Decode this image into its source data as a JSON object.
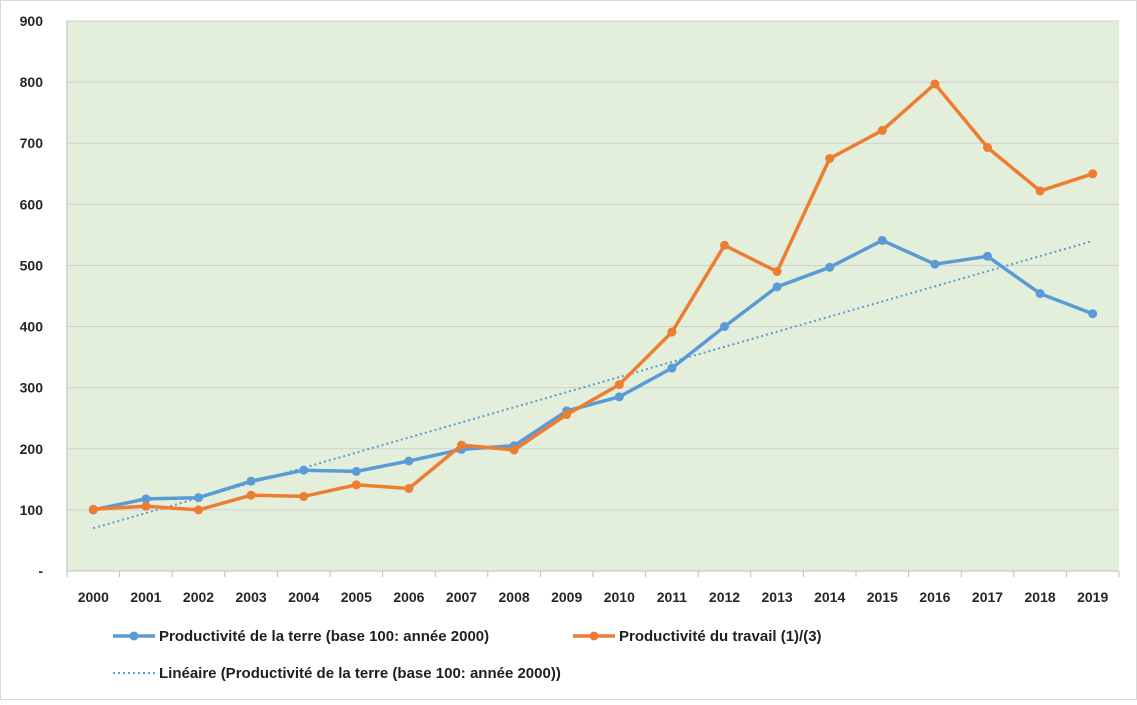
{
  "chart_data": {
    "type": "line",
    "title": "",
    "xlabel": "",
    "ylabel": "",
    "x": [
      "2000",
      "2001",
      "2002",
      "2003",
      "2004",
      "2005",
      "2006",
      "2007",
      "2008",
      "2009",
      "2010",
      "2011",
      "2012",
      "2013",
      "2014",
      "2015",
      "2016",
      "2017",
      "2018",
      "2019"
    ],
    "ylim": [
      0,
      900
    ],
    "y_ticks": [
      0,
      100,
      200,
      300,
      400,
      500,
      600,
      700,
      800,
      900
    ],
    "y_tick_labels": [
      "-",
      "100",
      "200",
      "300",
      "400",
      "500",
      "600",
      "700",
      "800",
      "900"
    ],
    "grid": true,
    "legend_position": "bottom",
    "plot_background": "#e3efdb",
    "series": [
      {
        "name": "Productivité de la terre (base 100: année 2000)",
        "color": "#5b9bd5",
        "style": "solid-marker",
        "values": [
          100,
          118,
          120,
          147,
          165,
          163,
          180,
          199,
          205,
          262,
          285,
          332,
          400,
          465,
          497,
          541,
          502,
          515,
          454,
          421
        ]
      },
      {
        "name": "Productivité du travail (1)/(3)",
        "color": "#ed7d31",
        "style": "solid-marker",
        "values": [
          101,
          106,
          100,
          124,
          122,
          141,
          135,
          206,
          198,
          256,
          305,
          391,
          533,
          490,
          675,
          721,
          797,
          693,
          622,
          650
        ]
      }
    ],
    "trendline": {
      "name": "Linéaire (Productivité de la terre (base 100: année 2000))",
      "color": "#5b9bd5",
      "style": "dotted",
      "start": 70,
      "end": 540
    }
  }
}
